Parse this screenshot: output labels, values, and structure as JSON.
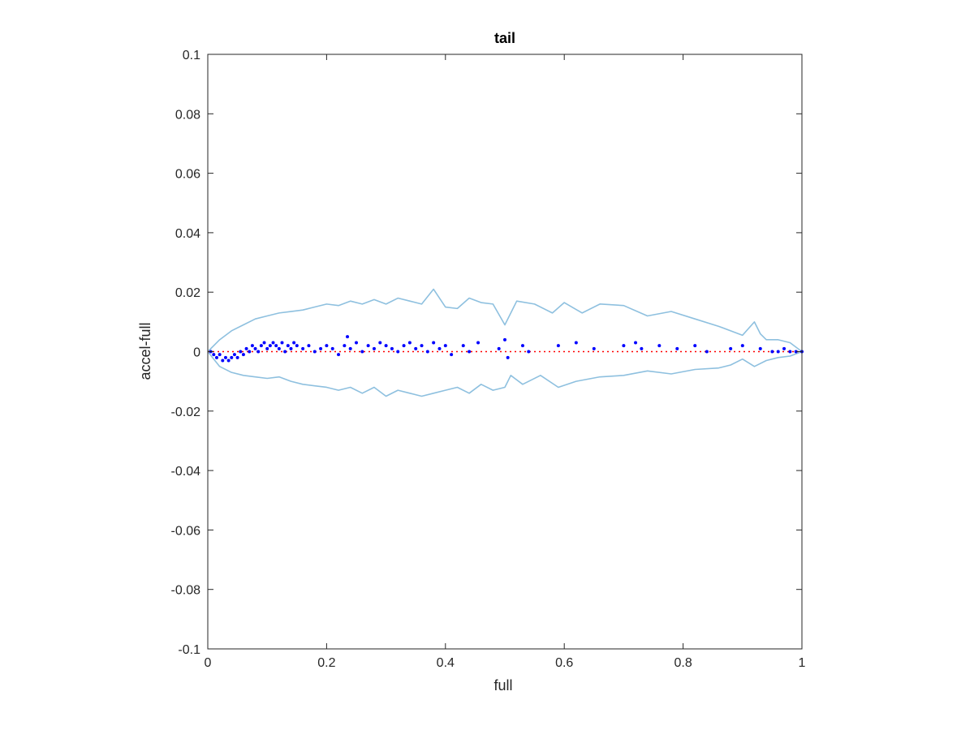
{
  "chart_data": {
    "type": "scatter",
    "title": "tail",
    "xlabel": "full",
    "ylabel": "accel-full",
    "xlim": [
      0,
      1
    ],
    "ylim": [
      -0.1,
      0.1
    ],
    "xticks": [
      "0",
      "0.2",
      "0.4",
      "0.6",
      "0.8",
      "1"
    ],
    "yticks": [
      "-0.1",
      "-0.08",
      "-0.06",
      "-0.04",
      "-0.02",
      "0",
      "0.02",
      "0.04",
      "0.06",
      "0.08",
      "0.1"
    ],
    "grid": false,
    "colors": {
      "envelope": "#8ec0df",
      "points": "#0000ff",
      "reference": "#ff0000",
      "axes": "#262626"
    },
    "series": [
      {
        "kind": "line",
        "x": [
          0,
          0.02,
          0.04,
          0.06,
          0.08,
          0.1,
          0.12,
          0.14,
          0.16,
          0.18,
          0.2,
          0.22,
          0.24,
          0.26,
          0.28,
          0.3,
          0.32,
          0.34,
          0.36,
          0.38,
          0.4,
          0.42,
          0.44,
          0.46,
          0.48,
          0.5,
          0.52,
          0.55,
          0.58,
          0.6,
          0.63,
          0.66,
          0.7,
          0.74,
          0.78,
          0.82,
          0.86,
          0.9,
          0.92,
          0.93,
          0.94,
          0.96,
          0.98,
          1
        ],
        "y": [
          0,
          0.004,
          0.007,
          0.009,
          0.011,
          0.012,
          0.013,
          0.0135,
          0.014,
          0.015,
          0.016,
          0.0155,
          0.017,
          0.016,
          0.0175,
          0.016,
          0.018,
          0.017,
          0.016,
          0.021,
          0.015,
          0.0145,
          0.018,
          0.0165,
          0.016,
          0.009,
          0.017,
          0.016,
          0.013,
          0.0165,
          0.013,
          0.016,
          0.0155,
          0.012,
          0.0135,
          0.011,
          0.0085,
          0.0055,
          0.01,
          0.006,
          0.004,
          0.004,
          0.003,
          0
        ]
      },
      {
        "kind": "line",
        "x": [
          0,
          0.02,
          0.04,
          0.06,
          0.08,
          0.1,
          0.12,
          0.14,
          0.16,
          0.18,
          0.2,
          0.22,
          0.24,
          0.26,
          0.28,
          0.3,
          0.32,
          0.34,
          0.36,
          0.38,
          0.4,
          0.42,
          0.44,
          0.46,
          0.48,
          0.5,
          0.51,
          0.53,
          0.56,
          0.59,
          0.62,
          0.66,
          0.7,
          0.74,
          0.78,
          0.82,
          0.86,
          0.88,
          0.9,
          0.92,
          0.94,
          0.96,
          0.98,
          1
        ],
        "y": [
          0,
          -0.005,
          -0.007,
          -0.008,
          -0.0085,
          -0.009,
          -0.0085,
          -0.01,
          -0.011,
          -0.0115,
          -0.012,
          -0.013,
          -0.012,
          -0.014,
          -0.012,
          -0.015,
          -0.013,
          -0.014,
          -0.015,
          -0.014,
          -0.013,
          -0.012,
          -0.014,
          -0.011,
          -0.013,
          -0.012,
          -0.008,
          -0.011,
          -0.008,
          -0.012,
          -0.01,
          -0.0085,
          -0.008,
          -0.0065,
          -0.0075,
          -0.006,
          -0.0055,
          -0.0045,
          -0.0025,
          -0.005,
          -0.003,
          -0.002,
          -0.0015,
          0
        ]
      },
      {
        "kind": "reference-line",
        "x": [
          0,
          1
        ],
        "y": [
          0,
          0
        ]
      },
      {
        "kind": "points",
        "x": [
          0.005,
          0.01,
          0.015,
          0.02,
          0.025,
          0.03,
          0.035,
          0.04,
          0.045,
          0.05,
          0.055,
          0.06,
          0.065,
          0.07,
          0.075,
          0.08,
          0.085,
          0.09,
          0.095,
          0.1,
          0.105,
          0.11,
          0.115,
          0.12,
          0.125,
          0.13,
          0.135,
          0.14,
          0.145,
          0.15,
          0.16,
          0.17,
          0.18,
          0.19,
          0.2,
          0.21,
          0.22,
          0.23,
          0.235,
          0.24,
          0.25,
          0.26,
          0.27,
          0.28,
          0.29,
          0.3,
          0.31,
          0.32,
          0.33,
          0.34,
          0.35,
          0.36,
          0.37,
          0.38,
          0.39,
          0.4,
          0.41,
          0.43,
          0.44,
          0.455,
          0.49,
          0.5,
          0.505,
          0.53,
          0.54,
          0.59,
          0.62,
          0.65,
          0.7,
          0.72,
          0.73,
          0.76,
          0.79,
          0.82,
          0.84,
          0.88,
          0.9,
          0.93,
          0.95,
          0.96,
          0.97,
          0.98,
          0.99,
          1
        ],
        "y": [
          0.0,
          -0.001,
          -0.002,
          -0.001,
          -0.003,
          -0.002,
          -0.003,
          -0.002,
          -0.001,
          -0.002,
          0.0,
          -0.001,
          0.001,
          0.0,
          0.002,
          0.001,
          0.0,
          0.002,
          0.003,
          0.001,
          0.002,
          0.003,
          0.002,
          0.001,
          0.003,
          0.0,
          0.002,
          0.001,
          0.003,
          0.002,
          0.001,
          0.002,
          0.0,
          0.001,
          0.002,
          0.001,
          -0.001,
          0.002,
          0.005,
          0.001,
          0.003,
          0.0,
          0.002,
          0.001,
          0.003,
          0.002,
          0.001,
          0.0,
          0.002,
          0.003,
          0.001,
          0.002,
          0.0,
          0.003,
          0.001,
          0.002,
          -0.001,
          0.002,
          0.0,
          0.003,
          0.001,
          0.004,
          -0.002,
          0.002,
          0.0,
          0.002,
          0.003,
          0.001,
          0.002,
          0.003,
          0.001,
          0.002,
          0.001,
          0.002,
          0.0,
          0.001,
          0.002,
          0.001,
          0.0,
          0.0,
          0.001,
          0.0,
          0.0,
          0.0
        ]
      }
    ]
  }
}
